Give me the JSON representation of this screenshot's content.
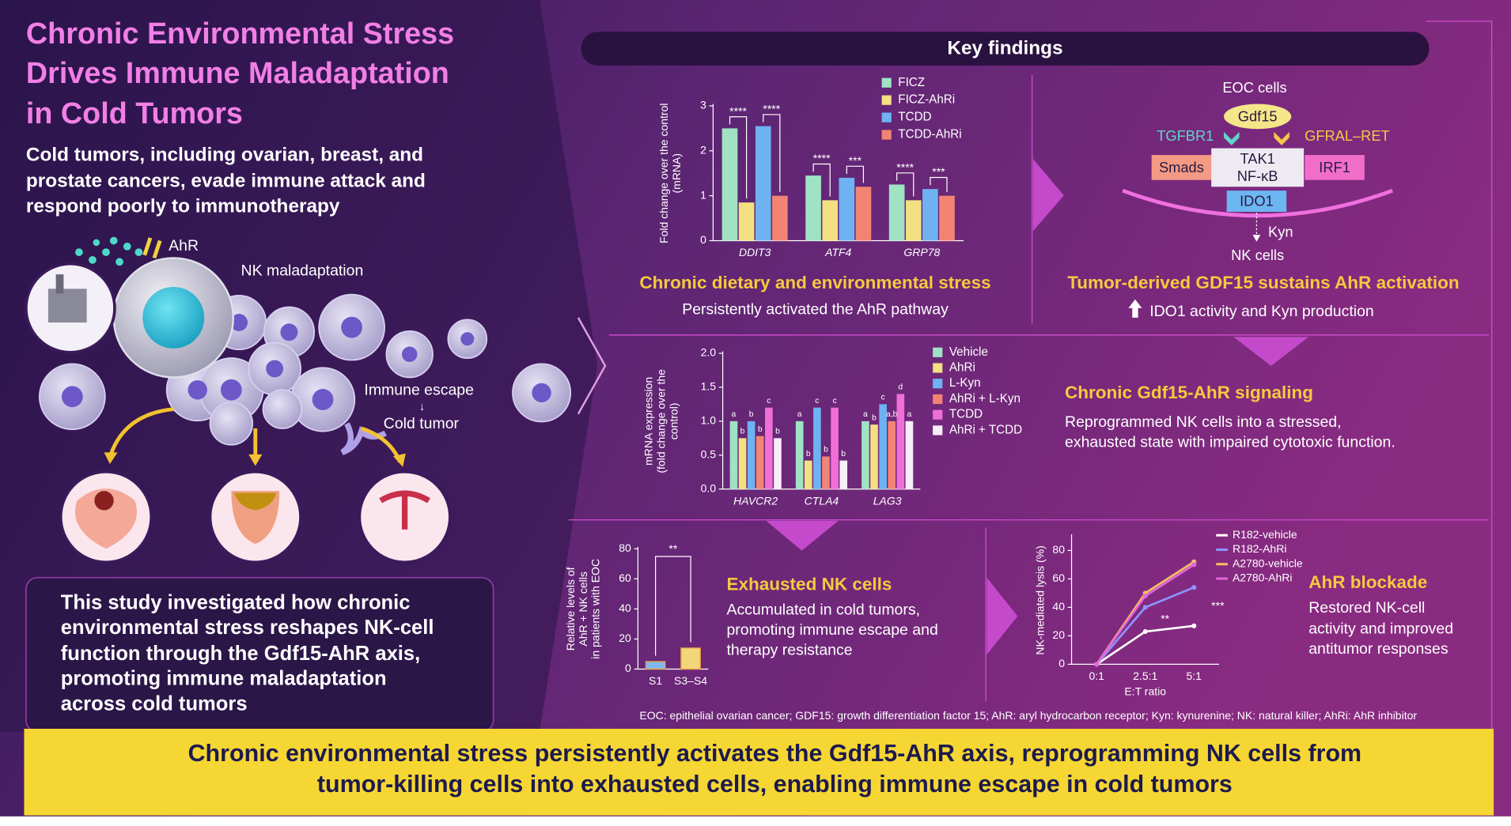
{
  "title": [
    "Chronic Environmental Stress",
    "Drives Immune Maladaptation",
    "in Cold Tumors"
  ],
  "subtitle": [
    "Cold tumors, including ovarian, breast, and",
    "prostate cancers, evade immune attack and",
    "respond poorly to immunotherapy"
  ],
  "illustration": {
    "ahr": "AhR",
    "nk": "NK maladaptation",
    "escape": "Immune escape",
    "arrow": "↓",
    "cold": "Cold tumor"
  },
  "study": [
    "This study investigated how chronic",
    "environmental stress reshapes NK-cell",
    "function through the Gdf15-AhR axis,",
    "promoting immune maladaptation",
    "across cold tumors"
  ],
  "key_findings": "Key findings",
  "panels": [
    {
      "heading": "Chronic dietary and environmental stress",
      "text": [
        "Persistently activated the AhR pathway"
      ]
    },
    {
      "heading": "Tumor-derived GDF15 sustains AhR activation",
      "text": [
        "IDO1 activity and Kyn production"
      ]
    },
    {
      "heading": "Chronic Gdf15-AhR signaling",
      "text": [
        "Reprogrammed NK cells into a stressed,",
        "exhausted state with impaired cytotoxic function."
      ]
    },
    {
      "heading": "Exhausted NK cells",
      "text": [
        "Accumulated in cold tumors,",
        "promoting immune escape and",
        "therapy resistance"
      ]
    },
    {
      "heading": "AhR blockade",
      "text": [
        "Restored NK-cell",
        "activity and improved",
        "antitumor responses"
      ]
    }
  ],
  "diagram": {
    "eoc": "EOC cells",
    "gdf15": "Gdf15",
    "tgfbr1": "TGFBR1",
    "gfral": "GFRAL–RET",
    "smads": "Smads",
    "tak1": "TAK1",
    "nfkb": "NF-κB",
    "irf1": "IRF1",
    "ido1": "IDO1",
    "kyn": "Kyn",
    "nk": "NK cells"
  },
  "chart_data": [
    {
      "type": "bar",
      "ylabel": [
        "Fold change over the control",
        "(mRNA)"
      ],
      "categories": [
        "DDIT3",
        "ATF4",
        "GRP78"
      ],
      "series": [
        {
          "name": "FICZ",
          "color": "#9fe3c4",
          "values": [
            2.5,
            1.45,
            1.25
          ]
        },
        {
          "name": "FICZ-AhRi",
          "color": "#f2e082",
          "values": [
            0.85,
            0.9,
            0.9
          ]
        },
        {
          "name": "TCDD",
          "color": "#6fb2f2",
          "values": [
            2.55,
            1.4,
            1.15
          ]
        },
        {
          "name": "TCDD-AhRi",
          "color": "#f28474",
          "values": [
            1.0,
            1.2,
            1.0
          ]
        }
      ],
      "significance": [
        [
          "****",
          "****"
        ],
        [
          "****",
          "***"
        ],
        [
          "****",
          "***"
        ]
      ],
      "ylim": [
        0,
        3
      ],
      "yticks": [
        0,
        1,
        2,
        3
      ]
    },
    {
      "type": "bar",
      "ylabel": [
        "mRNA expression",
        "(fold change over the",
        "control)"
      ],
      "categories": [
        "HAVCR2",
        "CTLA4",
        "LAG3"
      ],
      "series": [
        {
          "name": "Vehicle",
          "color": "#9fe3c4",
          "values": [
            1.0,
            1.0,
            1.0
          ],
          "letters": [
            "a",
            "a",
            "a"
          ]
        },
        {
          "name": "AhRi",
          "color": "#f2e082",
          "values": [
            0.75,
            0.42,
            0.95
          ],
          "letters": [
            "b",
            "b",
            "b"
          ]
        },
        {
          "name": "L-Kyn",
          "color": "#6fb2f2",
          "values": [
            1.0,
            1.2,
            1.25
          ],
          "letters": [
            "b",
            "c",
            "c"
          ]
        },
        {
          "name": "AhRi + L-Kyn",
          "color": "#f28474",
          "values": [
            0.78,
            0.48,
            1.0
          ],
          "letters": [
            "b",
            "b",
            "a,b"
          ]
        },
        {
          "name": "TCDD",
          "color": "#f06fd6",
          "values": [
            1.2,
            1.2,
            1.4
          ],
          "letters": [
            "c",
            "c",
            "d"
          ]
        },
        {
          "name": "AhRi + TCDD",
          "color": "#f8eef8",
          "values": [
            0.75,
            0.42,
            1.0
          ],
          "letters": [
            "b",
            "b",
            "a"
          ]
        }
      ],
      "ylim": [
        0,
        2
      ],
      "yticks": [
        {
          "value": 0,
          "label": "0.0"
        },
        {
          "value": 0.5,
          "label": "0.5"
        },
        {
          "value": 1,
          "label": "1.0"
        },
        {
          "value": 1.5,
          "label": "1.5"
        },
        {
          "value": 2,
          "label": "2.0"
        }
      ]
    },
    {
      "type": "bar",
      "ylabel": [
        "Relative levels of",
        "AhR + NK cells",
        "in patients with EOC"
      ],
      "categories": [
        "S1",
        "S3–S4"
      ],
      "values": [
        5,
        14
      ],
      "colors": [
        "#7fb8f0",
        "#f2d67a"
      ],
      "significance": "**",
      "ylim": [
        0,
        80
      ],
      "yticks": [
        0,
        20,
        40,
        60,
        80
      ]
    },
    {
      "type": "line",
      "ylabel": [
        "NK-mediated lysis (%)"
      ],
      "xlabel": "E:T ratio",
      "categories": [
        "0:1",
        "2.5:1",
        "5:1"
      ],
      "series": [
        {
          "name": "R182-vehicle",
          "color": "#ffffff",
          "values": [
            0,
            23,
            27
          ]
        },
        {
          "name": "R182-AhRi",
          "color": "#8d95ff",
          "values": [
            0,
            40,
            54
          ]
        },
        {
          "name": "A2780-vehicle",
          "color": "#f4c25e",
          "values": [
            0,
            50,
            72
          ]
        },
        {
          "name": "A2780-AhRi",
          "color": "#e466e0",
          "values": [
            0,
            48,
            70
          ]
        }
      ],
      "significance": [
        "**",
        "***"
      ],
      "ylim": [
        0,
        90
      ],
      "yticks": [
        0,
        20,
        40,
        60,
        80
      ]
    }
  ],
  "footnote": "EOC: epithelial ovarian cancer; GDF15: growth differentiation factor 15; AhR: aryl hydrocarbon receptor; Kyn: kynurenine; NK: natural killer; AhRi: AhR inhibitor",
  "conclusion": [
    "Chronic environmental stress persistently activates the Gdf15-AhR axis, reprogramming NK cells from",
    "tumor-killing cells into exhausted cells, enabling immune escape in cold tumors"
  ]
}
